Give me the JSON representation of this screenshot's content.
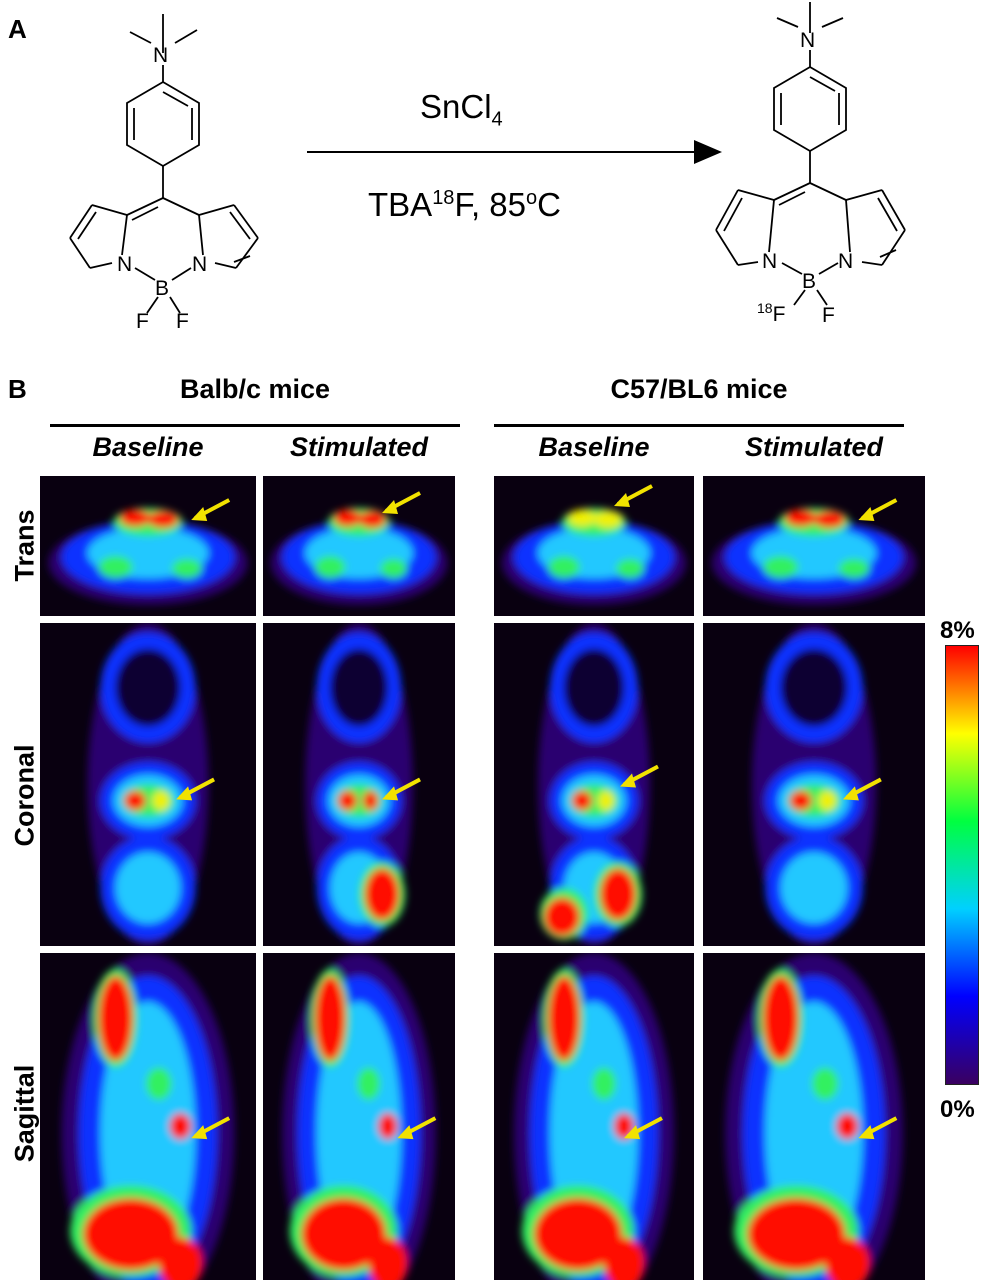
{
  "panel_a": {
    "letter": "A",
    "reagent_top": "SnCl",
    "reagent_top_sub": "4",
    "reagent_bottom_pre": "TBA",
    "reagent_bottom_sup": "18",
    "reagent_bottom_post": "F, 85",
    "reagent_bottom_sup2": "o",
    "reagent_bottom_end": "C",
    "atom_n_top": "N",
    "atom_n_left": "N",
    "atom_n_right": "N",
    "atom_b": "B",
    "atom_f_left": "F",
    "atom_f_right": "F",
    "atom_18f_sup": "18",
    "atom_18f": "F"
  },
  "panel_b": {
    "letter": "B",
    "groups": [
      "Balb/c mice",
      "C57/BL6 mice"
    ],
    "conditions": [
      "Baseline",
      "Stimulated",
      "Baseline",
      "Stimulated"
    ],
    "rows": [
      "Trans",
      "Coronal",
      "Sagittal"
    ],
    "colorbar": {
      "max_label": "8%",
      "min_label": "0%",
      "colors": [
        "#3a0060",
        "#0000ff",
        "#00d0ff",
        "#00ff40",
        "#ffff00",
        "#ff0000"
      ]
    },
    "arrow_color": "#f2e200"
  }
}
